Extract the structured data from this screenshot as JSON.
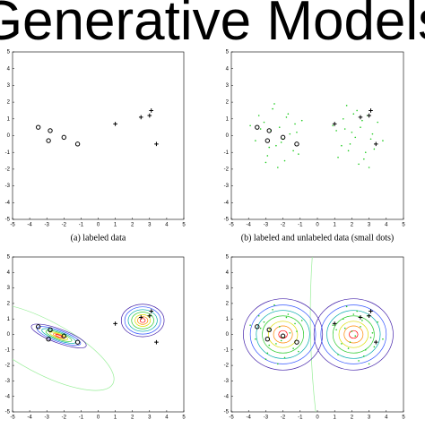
{
  "title": "Generative Models",
  "chart_data": [
    {
      "type": "scatter",
      "caption": "(a) labeled data",
      "xlim": [
        -5,
        5
      ],
      "ylim": [
        -5,
        5
      ],
      "xticks": [
        -5,
        -4,
        -3,
        -2,
        -1,
        0,
        1,
        2,
        3,
        4,
        5
      ],
      "yticks": [
        -5,
        -4,
        -3,
        -2,
        -1,
        0,
        1,
        2,
        3,
        4,
        5
      ],
      "series": [
        {
          "marker": "o",
          "color": "#000000",
          "x": [
            -3.5,
            -2.8,
            -2.9,
            -2.0,
            -1.2
          ],
          "y": [
            0.5,
            0.3,
            -0.3,
            -0.1,
            -0.5
          ]
        },
        {
          "marker": "+",
          "color": "#000000",
          "x": [
            1.0,
            2.5,
            3.0,
            3.1,
            3.4
          ],
          "y": [
            0.7,
            1.1,
            1.2,
            1.5,
            -0.5
          ]
        }
      ]
    },
    {
      "type": "scatter",
      "caption": "(b) labeled and unlabeled data (small dots)",
      "xlim": [
        -5,
        5
      ],
      "ylim": [
        -5,
        5
      ],
      "xticks": [
        -5,
        -4,
        -3,
        -2,
        -1,
        0,
        1,
        2,
        3,
        4,
        5
      ],
      "yticks": [
        -5,
        -4,
        -3,
        -2,
        -1,
        0,
        1,
        2,
        3,
        4,
        5
      ],
      "series": [
        {
          "marker": "dot",
          "color": "#22cc22",
          "x": [
            -3.1,
            -2.4,
            -1.7,
            -2.9,
            -1.2,
            -2.2,
            -3.6,
            -1.9,
            -2.6,
            -1.4,
            -3.3,
            -2.0,
            -0.9,
            -2.8,
            -1.6,
            -3.9,
            -2.3,
            -1.1,
            -2.7,
            -1.8,
            -3.0,
            -2.5,
            -1.3,
            -3.4,
            -2.1,
            1.9,
            2.6,
            1.2,
            2.3,
            3.1,
            1.6,
            2.8,
            2.0,
            3.5,
            1.4,
            2.4,
            0.9,
            2.9,
            1.7,
            3.3,
            2.2,
            1.1,
            2.7,
            3.8,
            1.5,
            2.5,
            3.0,
            1.8,
            2.1,
            3.2
          ],
          "y": [
            0.8,
            -0.6,
            1.3,
            -1.2,
            0.2,
            0.5,
            -0.3,
            -1.5,
            1.6,
            -0.9,
            0.4,
            -0.2,
            0.9,
            -0.7,
            0.1,
            0.6,
            -1.9,
            -1.1,
            0.3,
            1.1,
            -1.6,
            1.9,
            0.7,
            1.2,
            -0.4,
            -0.5,
            0.9,
            -1.3,
            1.5,
            -0.2,
            0.4,
            -1.0,
            0.2,
            0.8,
            -0.6,
            -1.7,
            0.6,
            1.2,
            1.8,
            -0.8,
            -0.1,
            0.3,
            -1.4,
            -0.3,
            1.0,
            0.5,
            -1.9,
            -0.9,
            1.3,
            0.1
          ]
        },
        {
          "marker": "o",
          "color": "#000000",
          "x": [
            -3.5,
            -2.8,
            -2.9,
            -2.0,
            -1.2
          ],
          "y": [
            0.5,
            0.3,
            -0.3,
            -0.1,
            -0.5
          ]
        },
        {
          "marker": "+",
          "color": "#000000",
          "x": [
            1.0,
            2.5,
            3.0,
            3.1,
            3.4
          ],
          "y": [
            0.7,
            1.1,
            1.2,
            1.5,
            -0.5
          ]
        }
      ]
    },
    {
      "type": "scatter",
      "xlim": [
        -5,
        5
      ],
      "ylim": [
        -5,
        5
      ],
      "xticks": [
        -5,
        -4,
        -3,
        -2,
        -1,
        0,
        1,
        2,
        3,
        4,
        5
      ],
      "yticks": [
        -5,
        -4,
        -3,
        -2,
        -1,
        0,
        1,
        2,
        3,
        4,
        5
      ],
      "series": [
        {
          "marker": "o",
          "color": "#000000",
          "x": [
            -3.5,
            -2.8,
            -2.9,
            -2.0,
            -1.2
          ],
          "y": [
            0.5,
            0.3,
            -0.3,
            -0.1,
            -0.5
          ]
        },
        {
          "marker": "+",
          "color": "#000000",
          "x": [
            1.0,
            2.5,
            3.0,
            3.1,
            3.4
          ],
          "y": [
            0.7,
            1.1,
            1.2,
            1.5,
            -0.5
          ]
        }
      ]
    },
    {
      "type": "scatter",
      "xlim": [
        -5,
        5
      ],
      "ylim": [
        -5,
        5
      ],
      "xticks": [
        -5,
        -4,
        -3,
        -2,
        -1,
        0,
        1,
        2,
        3,
        4,
        5
      ],
      "yticks": [
        -5,
        -4,
        -3,
        -2,
        -1,
        0,
        1,
        2,
        3,
        4,
        5
      ],
      "series": [
        {
          "marker": "dot",
          "color": "#22cc22",
          "x": [
            -3.1,
            -2.4,
            -1.7,
            -2.9,
            -1.2,
            -2.2,
            -3.6,
            -1.9,
            -2.6,
            -1.4,
            -3.3,
            -2.0,
            -0.9,
            -2.8,
            -1.6,
            -3.9,
            -2.3,
            -1.1,
            -2.7,
            -1.8,
            -3.0,
            -2.5,
            -1.3,
            -3.4,
            -2.1,
            1.9,
            2.6,
            1.2,
            2.3,
            3.1,
            1.6,
            2.8,
            2.0,
            3.5,
            1.4,
            2.4,
            0.9,
            2.9,
            1.7,
            3.3,
            2.2,
            1.1,
            2.7,
            3.8,
            1.5,
            2.5,
            3.0,
            1.8,
            2.1,
            3.2
          ],
          "y": [
            0.8,
            -0.6,
            1.3,
            -1.2,
            0.2,
            0.5,
            -0.3,
            -1.5,
            1.6,
            -0.9,
            0.4,
            -0.2,
            0.9,
            -0.7,
            0.1,
            0.6,
            -1.9,
            -1.1,
            0.3,
            1.1,
            -1.6,
            1.9,
            0.7,
            1.2,
            -0.4,
            -0.5,
            0.9,
            -1.3,
            1.5,
            -0.2,
            0.4,
            -1.0,
            0.2,
            0.8,
            -0.6,
            -1.7,
            0.6,
            1.2,
            1.8,
            -0.8,
            -0.1,
            0.3,
            -1.4,
            -0.3,
            1.0,
            0.5,
            -1.9,
            -0.9,
            1.3,
            0.1
          ]
        },
        {
          "marker": "o",
          "color": "#000000",
          "x": [
            -3.5,
            -2.8,
            -2.9,
            -2.0,
            -1.2
          ],
          "y": [
            0.5,
            0.3,
            -0.3,
            -0.1,
            -0.5
          ]
        },
        {
          "marker": "+",
          "color": "#000000",
          "x": [
            1.0,
            2.5,
            3.0,
            3.1,
            3.4
          ],
          "y": [
            0.7,
            1.1,
            1.2,
            1.5,
            -0.5
          ]
        }
      ]
    }
  ]
}
